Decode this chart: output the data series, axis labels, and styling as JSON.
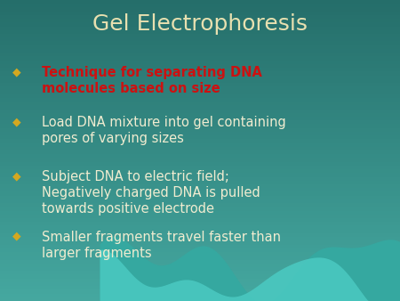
{
  "title": "Gel Electrophoresis",
  "title_color": "#e8e0b0",
  "title_fontsize": 18,
  "bg_color_top": "#2d7a78",
  "bg_color_bottom": "#3a9a94",
  "bullet_color": "#d4a820",
  "bullet_char": "◆",
  "bullet_items": [
    {
      "text": "Technique for separating DNA\nmolecules based on size",
      "color": "#cc1111",
      "bold": true
    },
    {
      "text": "Load DNA mixture into gel containing\npores of varying sizes",
      "color": "#f0ecd0",
      "bold": false
    },
    {
      "text": "Subject DNA to electric field;\nNegatively charged DNA is pulled\ntowards positive electrode",
      "color": "#f0ecd0",
      "bold": false
    },
    {
      "text": "Smaller fragments travel faster than\nlarger fragments",
      "color": "#f0ecd0",
      "bold": false
    }
  ],
  "wave_color1": "#40b8b0",
  "wave_color2": "#38c8c0",
  "text_fontsize": 10.5,
  "bullet_fontsize": 11
}
